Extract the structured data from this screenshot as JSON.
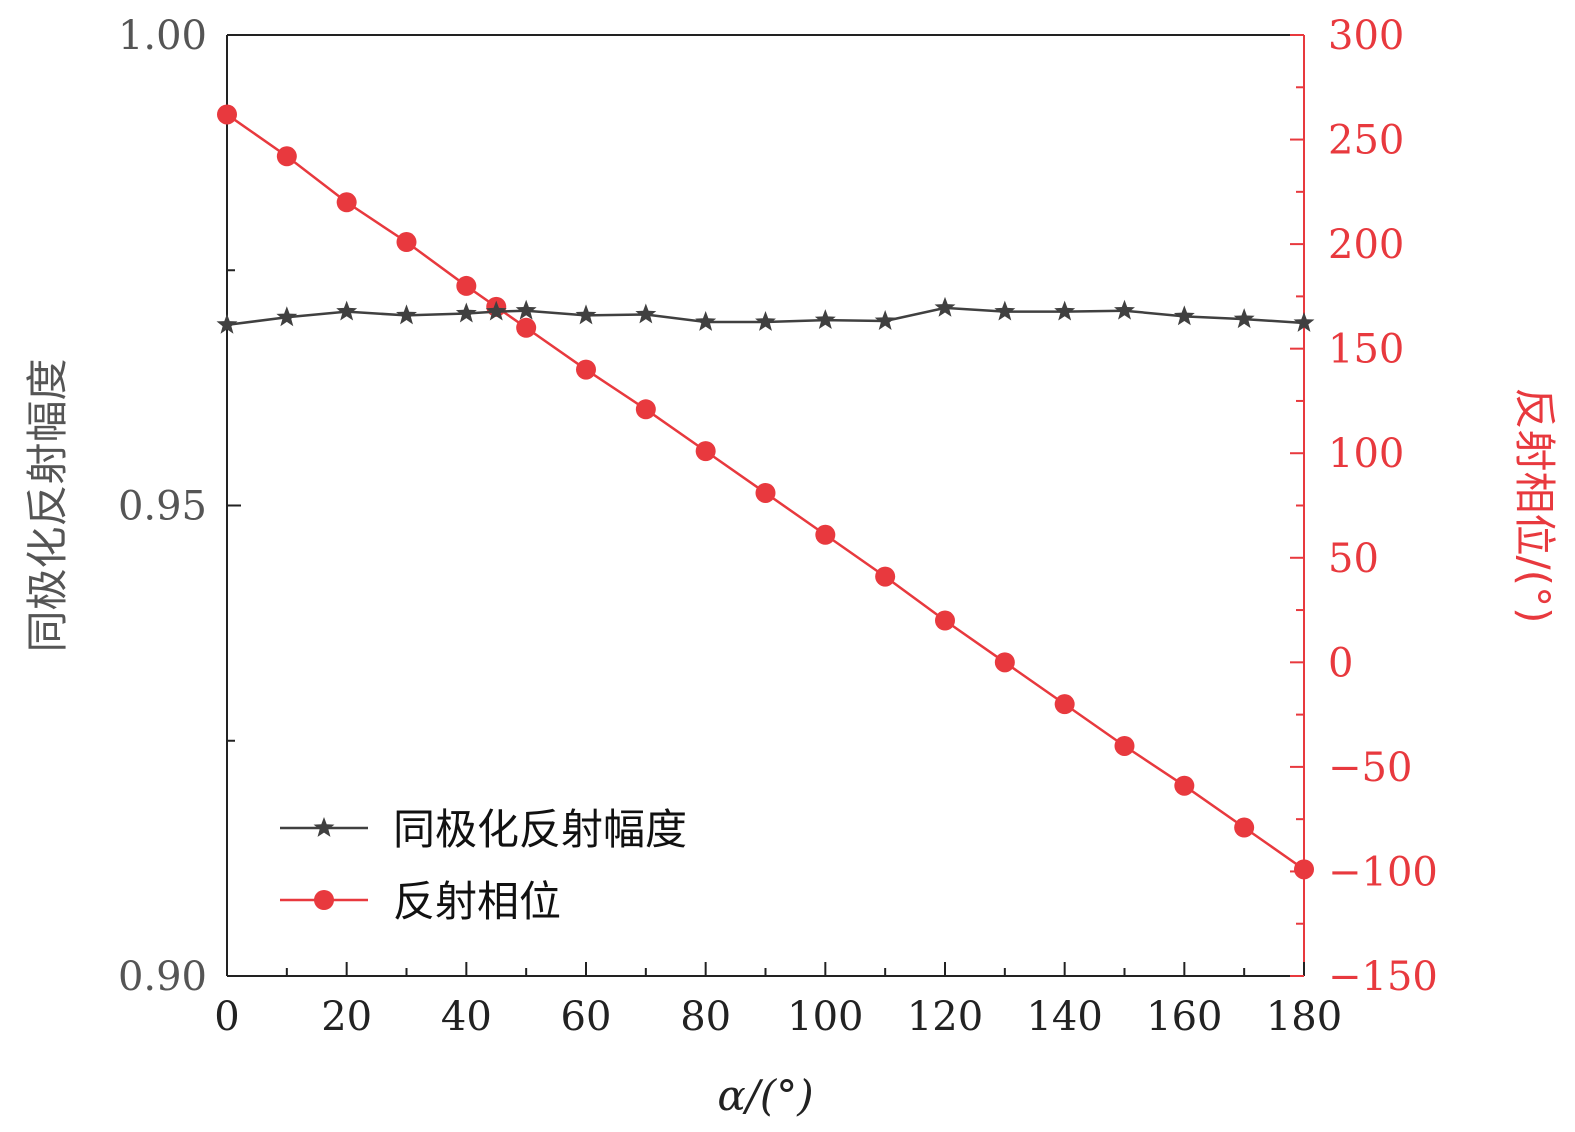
{
  "chart_data": {
    "type": "line",
    "xlabel": "α/(°)",
    "ylabel_left": "同极化反射幅度",
    "ylabel_right": "反射相位/(°)",
    "xlim": [
      0,
      180
    ],
    "ylim_left": [
      0.9,
      1.0
    ],
    "ylim_right": [
      -150,
      300
    ],
    "x_ticks": [
      "0",
      "20",
      "40",
      "60",
      "80",
      "100",
      "120",
      "140",
      "160",
      "180"
    ],
    "y_left_ticks": [
      "0.90",
      "0.95",
      "1.00"
    ],
    "y_right_ticks": [
      "−150",
      "−100",
      "−50",
      "0",
      "50",
      "100",
      "150",
      "200",
      "250",
      "300"
    ],
    "legend": {
      "position": "bottom-left"
    },
    "series": [
      {
        "name": "同极化反射幅度",
        "axis": "left",
        "marker": "star",
        "color": "#404040",
        "x": [
          0,
          10,
          20,
          30,
          40,
          45,
          50,
          60,
          70,
          80,
          90,
          100,
          110,
          120,
          130,
          140,
          150,
          160,
          170,
          180
        ],
        "values": [
          0.9692,
          0.97,
          0.9706,
          0.9702,
          0.9704,
          0.9706,
          0.9707,
          0.9702,
          0.9703,
          0.9695,
          0.9695,
          0.9697,
          0.9696,
          0.971,
          0.9706,
          0.9706,
          0.9707,
          0.9701,
          0.9698,
          0.9694
        ]
      },
      {
        "name": "反射相位",
        "axis": "right",
        "marker": "circle",
        "color": "#e8393e",
        "x": [
          0,
          10,
          20,
          30,
          40,
          45,
          50,
          60,
          70,
          80,
          90,
          100,
          110,
          120,
          130,
          140,
          150,
          160,
          170,
          180
        ],
        "values": [
          262,
          242,
          220,
          201,
          180,
          170,
          160,
          140,
          121,
          101,
          81,
          61,
          41,
          20,
          0,
          -20,
          -40,
          -59,
          -79,
          -99
        ]
      }
    ]
  }
}
